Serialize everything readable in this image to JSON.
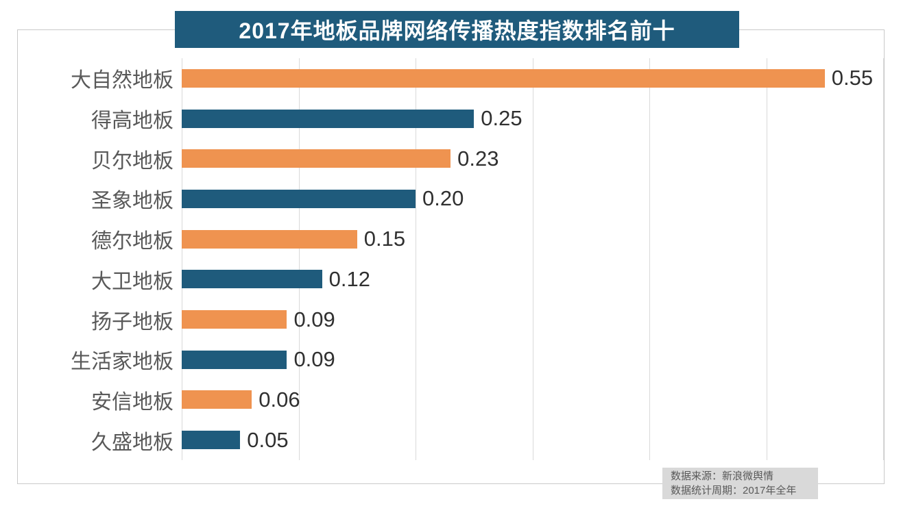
{
  "chart_data": {
    "type": "bar",
    "orientation": "horizontal",
    "title": "2017年地板品牌网络传播热度指数排名前十",
    "categories": [
      "大自然地板",
      "得高地板",
      "贝尔地板",
      "圣象地板",
      "德尔地板",
      "大卫地板",
      "扬子地板",
      "生活家地板",
      "安信地板",
      "久盛地板"
    ],
    "values": [
      0.55,
      0.25,
      0.23,
      0.2,
      0.15,
      0.12,
      0.09,
      0.09,
      0.06,
      0.05
    ],
    "value_labels": [
      "0.55",
      "0.25",
      "0.23",
      "0.20",
      "0.15",
      "0.12",
      "0.09",
      "0.09",
      "0.06",
      "0.05"
    ],
    "xlabel": "",
    "ylabel": "",
    "xlim": [
      0,
      0.6
    ],
    "x_ticks": [
      0,
      0.1,
      0.2,
      0.3,
      0.4,
      0.5,
      0.6
    ],
    "grid": "vertical-gridlines-on",
    "tick_labels_shown": false,
    "legend": "none",
    "bar_colors_alternating": [
      "#EF9350",
      "#1F5B7C"
    ]
  },
  "source": {
    "line1": "数据来源：新浪微舆情",
    "line2": "数据统计周期：2017年全年"
  },
  "colors": {
    "orange_bar": "#EF9350",
    "blue_bar": "#1F5B7C",
    "banner_bg": "#1F5B7C",
    "banner_text": "#FFFFFF",
    "category_label": "#595959",
    "value_label": "#303030",
    "gridline": "#D9D9D9",
    "card_border": "#C9C9C9",
    "source_bg": "#D9D9D9",
    "source_text": "#595959",
    "background": "#FFFFFF"
  }
}
